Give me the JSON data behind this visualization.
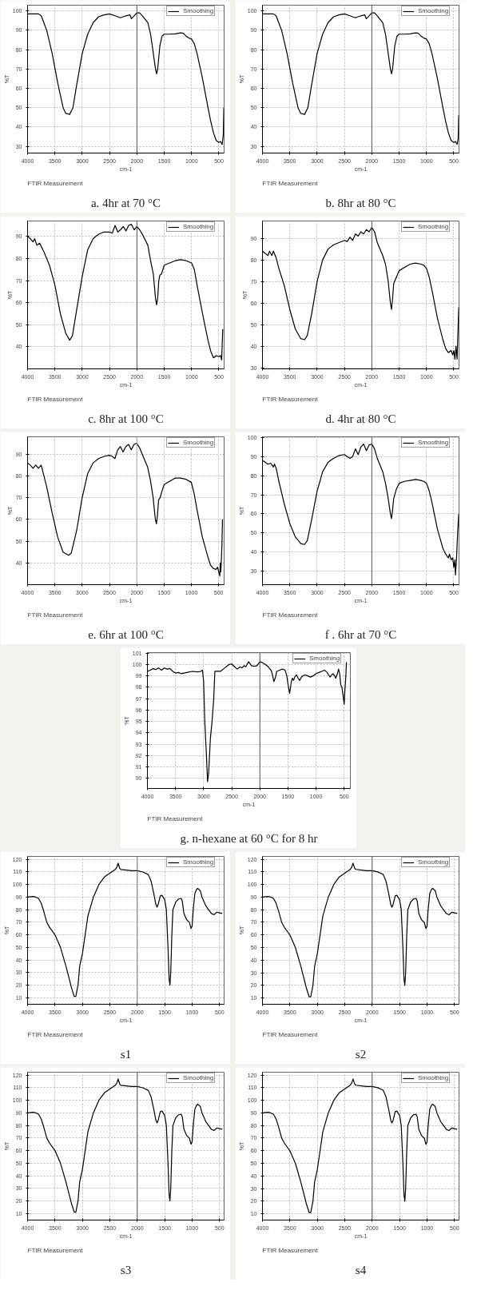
{
  "chart_data": [
    {
      "type": "line",
      "title": "a. 4hr at 70 °C",
      "xlabel": "cm-1",
      "ylabel": "%T",
      "annotations": [
        "FTIR Measurement"
      ],
      "grid": true,
      "legend": "top right",
      "x": [
        4000,
        3900,
        3800,
        3750,
        3650,
        3550,
        3450,
        3350,
        3300,
        3230,
        3170,
        3100,
        3000,
        2900,
        2800,
        2700,
        2600,
        2500,
        2400,
        2300,
        2200,
        2130,
        2100,
        2050,
        2000,
        1950,
        1900,
        1800,
        1750,
        1700,
        1660,
        1640,
        1620,
        1580,
        1540,
        1500,
        1400,
        1300,
        1200,
        1150,
        1100,
        1050,
        1000,
        950,
        900,
        800,
        700,
        650,
        600,
        550,
        500,
        470,
        440,
        420,
        410
      ],
      "series": [
        {
          "name": "Smoothing",
          "color": "#000000",
          "values": [
            98.5,
            98.5,
            98.5,
            97.5,
            90,
            78,
            63,
            50,
            47,
            46.5,
            50,
            62,
            78,
            88,
            94,
            97,
            98,
            98.5,
            97.5,
            96.5,
            97.5,
            98,
            96,
            97.5,
            99,
            99,
            97.5,
            94,
            88,
            78,
            70,
            67.5,
            70,
            82,
            87,
            88,
            88,
            88.2,
            88.7,
            88.5,
            87,
            86,
            85.5,
            83,
            78,
            65,
            50,
            43,
            37,
            33,
            32,
            32.5,
            31,
            36,
            50
          ]
        }
      ],
      "xlim": [
        4000,
        405
      ],
      "ylim": [
        26.5,
        103
      ],
      "xticks": [
        4000,
        3500,
        3000,
        2500,
        2000,
        1500,
        1000,
        500
      ],
      "yticks": [
        30,
        40,
        50,
        60,
        70,
        80,
        90,
        100
      ],
      "ref_lines": [
        {
          "axis": "x",
          "value": 2000,
          "color": "#555555"
        }
      ]
    },
    {
      "type": "line",
      "title": "b. 8hr at 80 °C",
      "xlabel": "cm-1",
      "ylabel": "%T",
      "annotations": [
        "FTIR Measurement"
      ],
      "grid": true,
      "legend": "top right",
      "x": [
        4000,
        3900,
        3800,
        3750,
        3650,
        3550,
        3450,
        3350,
        3300,
        3230,
        3170,
        3100,
        3000,
        2900,
        2800,
        2700,
        2600,
        2500,
        2400,
        2300,
        2200,
        2130,
        2100,
        2050,
        2000,
        1950,
        1900,
        1800,
        1750,
        1700,
        1660,
        1640,
        1620,
        1580,
        1540,
        1500,
        1400,
        1300,
        1200,
        1150,
        1100,
        1050,
        1000,
        950,
        900,
        800,
        700,
        650,
        600,
        550,
        500,
        470,
        440,
        420,
        410
      ],
      "series": [
        {
          "name": "Smoothing",
          "color": "#000000",
          "values": [
            98.5,
            98.5,
            98.5,
            97.5,
            90,
            78,
            63,
            50,
            47,
            46.5,
            50,
            62,
            78,
            88,
            94,
            97,
            98,
            98.5,
            97.5,
            96.5,
            97.5,
            98,
            96,
            97.5,
            99,
            99,
            97.5,
            94,
            88,
            78,
            70,
            67.5,
            70,
            82,
            87,
            88,
            88,
            88.2,
            88.7,
            88.5,
            87,
            86,
            85.5,
            83,
            78,
            65,
            50,
            43,
            37,
            33,
            32,
            32.5,
            31,
            34,
            46
          ]
        }
      ],
      "xlim": [
        4000,
        405
      ],
      "ylim": [
        26.5,
        103
      ],
      "xticks": [
        4000,
        3500,
        3000,
        2500,
        2000,
        1500,
        1000,
        500
      ],
      "yticks": [
        30,
        40,
        50,
        60,
        70,
        80,
        90,
        100
      ],
      "ref_lines": [
        {
          "axis": "x",
          "value": 2000,
          "color": "#555555"
        }
      ]
    },
    {
      "type": "line",
      "title": "c. 8hr at 100 °C",
      "xlabel": "cm-1",
      "ylabel": "%T",
      "annotations": [
        "FTIR Measurement"
      ],
      "grid": true,
      "legend": "top right",
      "x": [
        4000,
        3950,
        3900,
        3870,
        3830,
        3780,
        3700,
        3650,
        3600,
        3500,
        3400,
        3300,
        3230,
        3180,
        3100,
        3000,
        2900,
        2800,
        2700,
        2600,
        2500,
        2450,
        2400,
        2350,
        2300,
        2250,
        2200,
        2150,
        2100,
        2050,
        2000,
        1950,
        1900,
        1800,
        1750,
        1700,
        1660,
        1640,
        1620,
        1600,
        1580,
        1550,
        1500,
        1400,
        1300,
        1200,
        1100,
        1000,
        950,
        900,
        800,
        700,
        650,
        600,
        550,
        500,
        470,
        450,
        440,
        430
      ],
      "series": [
        {
          "name": "Smoothing",
          "color": "#000000",
          "values": [
            90,
            89,
            87.5,
            89,
            86,
            87,
            83,
            80,
            77,
            68,
            55,
            46,
            43,
            45,
            57,
            72,
            84,
            89,
            91,
            92,
            92,
            91.5,
            95,
            92,
            93,
            94.5,
            92.5,
            95,
            95.5,
            93,
            94.5,
            93,
            91,
            86,
            79,
            73,
            62,
            59,
            62,
            70,
            72.5,
            73,
            77,
            78,
            79,
            79.5,
            79,
            78,
            75,
            68,
            55,
            43,
            38,
            35,
            36,
            35.5,
            36,
            34,
            41,
            48
          ]
        }
      ],
      "xlim": [
        4000,
        405
      ],
      "ylim": [
        30,
        97
      ],
      "xticks": [
        4000,
        3500,
        3000,
        2500,
        2000,
        1500,
        1000,
        500
      ],
      "yticks": [
        40,
        50,
        60,
        70,
        80,
        90
      ],
      "ref_lines": [
        {
          "axis": "x",
          "value": 2000,
          "color": "#555555"
        }
      ]
    },
    {
      "type": "line",
      "title": "d. 4hr at 80 °C",
      "xlabel": "cm-1",
      "ylabel": "%T",
      "annotations": [
        "FTIR Measurement"
      ],
      "grid": true,
      "legend": "top right",
      "x": [
        4000,
        3950,
        3900,
        3870,
        3830,
        3800,
        3750,
        3700,
        3600,
        3500,
        3400,
        3300,
        3230,
        3180,
        3100,
        3000,
        2900,
        2800,
        2700,
        2600,
        2500,
        2450,
        2400,
        2350,
        2300,
        2250,
        2200,
        2150,
        2100,
        2050,
        2000,
        1950,
        1900,
        1800,
        1750,
        1700,
        1660,
        1640,
        1620,
        1600,
        1550,
        1500,
        1400,
        1300,
        1200,
        1100,
        1050,
        1000,
        950,
        900,
        800,
        700,
        650,
        600,
        550,
        520,
        500,
        480,
        460,
        440,
        420,
        410
      ],
      "series": [
        {
          "name": "Smoothing",
          "color": "#000000",
          "values": [
            84,
            83,
            82,
            84,
            82,
            84,
            81,
            76,
            68,
            57,
            48,
            43.5,
            43,
            45,
            55,
            70,
            80,
            85,
            87,
            88,
            89,
            88.5,
            90.5,
            89,
            92,
            91,
            93,
            92,
            94,
            93,
            95,
            93,
            88,
            82,
            78,
            70,
            60,
            57,
            62,
            69,
            72,
            75,
            76.5,
            78,
            78.5,
            78,
            77.5,
            76,
            72,
            66,
            53,
            43,
            39,
            37,
            38,
            36,
            38,
            34,
            40,
            34,
            50,
            58
          ]
        }
      ],
      "xlim": [
        4000,
        405
      ],
      "ylim": [
        29.5,
        98
      ],
      "xticks": [
        4000,
        3500,
        3000,
        2500,
        2000,
        1500,
        1000,
        500
      ],
      "yticks": [
        30,
        40,
        50,
        60,
        70,
        80,
        90
      ],
      "ref_lines": [
        {
          "axis": "x",
          "value": 2000,
          "color": "#555555"
        }
      ]
    },
    {
      "type": "line",
      "title": "e. 6hr at 100 °C",
      "xlabel": "cm-1",
      "ylabel": "%T",
      "annotations": [
        "FTIR Measurement"
      ],
      "grid": true,
      "legend": "top right",
      "x": [
        4000,
        3950,
        3900,
        3850,
        3800,
        3750,
        3720,
        3650,
        3550,
        3450,
        3350,
        3250,
        3200,
        3100,
        3000,
        2900,
        2800,
        2700,
        2600,
        2500,
        2450,
        2400,
        2350,
        2300,
        2250,
        2200,
        2150,
        2100,
        2050,
        2000,
        1950,
        1900,
        1800,
        1750,
        1700,
        1660,
        1640,
        1620,
        1600,
        1570,
        1550,
        1500,
        1400,
        1300,
        1200,
        1100,
        1000,
        950,
        900,
        800,
        700,
        650,
        600,
        550,
        520,
        500,
        480,
        470,
        460,
        440,
        430
      ],
      "series": [
        {
          "name": "Smoothing",
          "color": "#000000",
          "values": [
            86,
            85,
            83.5,
            85,
            83.5,
            85,
            82,
            75,
            63,
            52,
            45,
            43.5,
            44.5,
            55,
            70,
            81,
            86,
            88,
            89,
            89.5,
            89,
            88,
            92,
            93.5,
            91,
            93.5,
            94.5,
            92,
            94.5,
            95,
            93,
            90,
            84,
            78,
            70,
            60,
            58,
            62,
            69,
            70,
            72,
            76,
            77.5,
            79,
            79,
            78.5,
            77,
            72,
            65,
            52,
            43,
            39,
            37.5,
            37,
            38,
            36,
            34,
            40,
            36,
            48,
            60
          ]
        }
      ],
      "xlim": [
        4000,
        400
      ],
      "ylim": [
        30,
        98
      ],
      "xticks": [
        4000,
        3500,
        3000,
        2500,
        2000,
        1500,
        1000,
        500
      ],
      "yticks": [
        40,
        50,
        60,
        70,
        80,
        90
      ],
      "ref_lines": [
        {
          "axis": "x",
          "value": 2000,
          "color": "#aaaaaa"
        }
      ]
    },
    {
      "type": "line",
      "title": "f . 6hr at 70 °C",
      "xlabel": "cm-1",
      "ylabel": "%T",
      "annotations": [
        "FTIR Measurement"
      ],
      "grid": true,
      "legend": "top right",
      "x": [
        4000,
        3950,
        3900,
        3850,
        3800,
        3780,
        3750,
        3700,
        3600,
        3500,
        3400,
        3300,
        3230,
        3180,
        3100,
        3000,
        2900,
        2800,
        2700,
        2600,
        2500,
        2450,
        2400,
        2350,
        2300,
        2250,
        2200,
        2150,
        2100,
        2050,
        2000,
        1950,
        1900,
        1800,
        1750,
        1700,
        1660,
        1640,
        1620,
        1600,
        1550,
        1500,
        1400,
        1300,
        1200,
        1100,
        1050,
        1000,
        950,
        900,
        800,
        700,
        650,
        600,
        580,
        550,
        520,
        500,
        480,
        470,
        450,
        430,
        410
      ],
      "series": [
        {
          "name": "Smoothing",
          "color": "#000000",
          "values": [
            88,
            87,
            86,
            86.5,
            84.5,
            86,
            84,
            77,
            65,
            55,
            48,
            44.5,
            44,
            46,
            57,
            72,
            82,
            87,
            89,
            90.5,
            91,
            90,
            89,
            90,
            94,
            91,
            95,
            96.5,
            93,
            96,
            96.5,
            94,
            89,
            82,
            76,
            68,
            60,
            57.5,
            62,
            68,
            73,
            76,
            77,
            77.5,
            78,
            77.5,
            77,
            76,
            72,
            66,
            52,
            42,
            39,
            37,
            39,
            36,
            37,
            32,
            36,
            28,
            37,
            50,
            60
          ]
        }
      ],
      "xlim": [
        4000,
        405
      ],
      "ylim": [
        23,
        100.3
      ],
      "xticks": [
        4000,
        3500,
        3000,
        2500,
        2000,
        1500,
        1000,
        500
      ],
      "yticks": [
        30,
        40,
        50,
        60,
        70,
        80,
        90,
        100
      ],
      "ref_lines": [
        {
          "axis": "x",
          "value": 2000,
          "color": "#555555"
        }
      ]
    },
    {
      "type": "line",
      "title": "g. n-hexane at 60 °C for 8 hr",
      "xlabel": "cm-1",
      "ylabel": "%T",
      "annotations": [
        "FTIR Measurement"
      ],
      "grid": true,
      "legend": "top right",
      "x": [
        4000,
        3950,
        3900,
        3850,
        3800,
        3750,
        3700,
        3650,
        3600,
        3550,
        3500,
        3450,
        3400,
        3300,
        3200,
        3100,
        3050,
        3020,
        3000,
        2980,
        2950,
        2930,
        2910,
        2880,
        2850,
        2820,
        2800,
        2750,
        2700,
        2650,
        2600,
        2550,
        2500,
        2450,
        2400,
        2350,
        2320,
        2280,
        2250,
        2200,
        2150,
        2100,
        2050,
        2000,
        1950,
        1900,
        1850,
        1800,
        1780,
        1750,
        1720,
        1700,
        1650,
        1600,
        1550,
        1520,
        1500,
        1470,
        1440,
        1420,
        1400,
        1380,
        1350,
        1320,
        1290,
        1260,
        1200,
        1150,
        1100,
        1050,
        1000,
        950,
        900,
        850,
        800,
        780,
        750,
        720,
        700,
        670,
        650,
        620,
        600,
        580,
        560,
        540,
        520,
        500,
        490,
        470,
        460
      ],
      "series": [
        {
          "name": "Smoothing",
          "color": "#000000",
          "values": [
            99.4,
            99.5,
            99.65,
            99.55,
            99.7,
            99.5,
            99.7,
            99.6,
            99.65,
            99.4,
            99.25,
            99.3,
            99.2,
            99.3,
            99.4,
            99.35,
            99.4,
            99.5,
            98.5,
            95,
            92,
            89.7,
            90.5,
            93.5,
            95,
            97,
            99.4,
            99.4,
            99.4,
            99.6,
            99.8,
            100,
            100.05,
            99.8,
            99.6,
            99.8,
            99.7,
            99.9,
            99.8,
            100.25,
            99.9,
            99.85,
            99.9,
            100.25,
            100.15,
            100,
            99.8,
            99.5,
            99.2,
            98.5,
            98.9,
            99.4,
            99.5,
            99.6,
            99.5,
            99,
            98.3,
            97.45,
            98.5,
            98.8,
            98.6,
            98.9,
            99.1,
            98.8,
            98.6,
            98.9,
            99.1,
            99,
            98.9,
            99,
            99.2,
            99.3,
            99.4,
            99.5,
            99.3,
            99.1,
            98.9,
            99.1,
            99.2,
            99,
            98.8,
            99.2,
            99.6,
            99.2,
            98.2,
            98,
            97.3,
            96.5,
            97.5,
            99,
            100.2
          ]
        }
      ],
      "xlim": [
        4000,
        390
      ],
      "ylim": [
        89.1,
        101.05
      ],
      "xticks": [
        4000,
        3500,
        3000,
        2500,
        2000,
        1500,
        1000,
        500
      ],
      "yticks": [
        90,
        91,
        92,
        93,
        94,
        95,
        96,
        97,
        98,
        99,
        100,
        101
      ],
      "ref_lines": [
        {
          "axis": "x",
          "value": 2000,
          "color": "#555555"
        }
      ]
    },
    {
      "type": "line",
      "title": "s1",
      "xlabel": "cm-1",
      "ylabel": "%T",
      "annotations": [
        "FTIR Measurement"
      ],
      "grid": true,
      "legend": "top right",
      "x": [
        4000,
        3900,
        3850,
        3800,
        3750,
        3700,
        3650,
        3600,
        3500,
        3400,
        3300,
        3200,
        3150,
        3120,
        3080,
        3050,
        3000,
        2950,
        2900,
        2800,
        2700,
        2600,
        2500,
        2400,
        2370,
        2350,
        2320,
        2300,
        2200,
        2100,
        2000,
        1900,
        1800,
        1750,
        1700,
        1660,
        1640,
        1620,
        1580,
        1550,
        1500,
        1470,
        1440,
        1420,
        1405,
        1390,
        1370,
        1350,
        1300,
        1250,
        1200,
        1180,
        1150,
        1100,
        1050,
        1020,
        1000,
        980,
        950,
        920,
        900,
        850,
        820,
        780,
        750,
        700,
        650,
        600,
        550,
        500,
        450
      ],
      "series": [
        {
          "name": "Smoothing",
          "color": "#000000",
          "values": [
            90,
            90.5,
            90,
            89,
            85,
            78,
            70,
            66,
            60,
            50,
            35,
            18,
            11,
            11,
            20,
            35,
            45,
            60,
            75,
            90,
            100,
            106,
            109,
            112,
            114,
            117,
            113,
            112,
            111.5,
            111,
            111,
            110,
            108,
            103,
            93,
            84,
            82,
            84,
            91,
            91.5,
            88,
            80,
            50,
            25,
            20,
            30,
            60,
            80,
            86,
            88.5,
            89,
            87,
            77,
            72,
            70,
            65,
            67,
            80,
            93,
            96,
            97,
            95,
            90,
            86,
            83,
            80,
            77,
            76,
            78,
            77.5,
            77
          ]
        }
      ],
      "xlim": [
        4000,
        417
      ],
      "ylim": [
        4.7,
        122.4
      ],
      "xticks": [
        4000,
        3500,
        3000,
        2500,
        2000,
        1500,
        1000,
        500
      ],
      "yticks": [
        10,
        20,
        30,
        40,
        50,
        60,
        70,
        80,
        90,
        100,
        110,
        120
      ],
      "ref_lines": [
        {
          "axis": "x",
          "value": 2000,
          "color": "#777777"
        }
      ]
    },
    {
      "type": "line",
      "title": "s2",
      "xlabel": "cm-1",
      "ylabel": "%T",
      "annotations": [
        "FTIR Measurement"
      ],
      "grid": true,
      "legend": "top right",
      "x": [
        4000,
        3900,
        3850,
        3800,
        3750,
        3700,
        3650,
        3600,
        3500,
        3400,
        3300,
        3200,
        3150,
        3120,
        3080,
        3050,
        3000,
        2950,
        2900,
        2800,
        2700,
        2600,
        2500,
        2400,
        2370,
        2350,
        2320,
        2300,
        2200,
        2100,
        2000,
        1900,
        1800,
        1750,
        1700,
        1660,
        1640,
        1620,
        1580,
        1550,
        1500,
        1470,
        1440,
        1420,
        1405,
        1390,
        1370,
        1350,
        1300,
        1250,
        1200,
        1180,
        1150,
        1100,
        1050,
        1020,
        1000,
        980,
        950,
        920,
        900,
        850,
        820,
        780,
        750,
        700,
        650,
        600,
        550,
        500,
        450
      ],
      "series": [
        {
          "name": "Smoothing",
          "color": "#000000",
          "values": [
            90,
            90.5,
            90,
            89,
            85,
            78,
            70,
            66,
            60,
            50,
            35,
            18,
            11,
            11,
            20,
            35,
            45,
            60,
            75,
            90,
            100,
            106,
            109,
            112,
            114,
            117,
            113,
            112,
            111.5,
            111,
            111,
            110,
            108,
            103,
            93,
            84,
            82,
            84,
            91,
            91.5,
            88,
            80,
            50,
            25,
            20,
            30,
            60,
            80,
            86,
            88.5,
            89,
            87,
            77,
            72,
            70,
            65,
            67,
            80,
            93,
            96,
            97,
            95,
            90,
            86,
            83,
            80,
            77,
            76,
            78,
            77.5,
            77
          ]
        }
      ],
      "xlim": [
        4000,
        417
      ],
      "ylim": [
        5,
        122.3
      ],
      "xticks": [
        4000,
        3500,
        3000,
        2500,
        2000,
        1500,
        1000,
        500
      ],
      "yticks": [
        10,
        20,
        30,
        40,
        50,
        60,
        70,
        80,
        90,
        100,
        110,
        120
      ],
      "ref_lines": [
        {
          "axis": "x",
          "value": 2000,
          "color": "#555555"
        }
      ]
    },
    {
      "type": "line",
      "title": "s3",
      "xlabel": "cm-1",
      "ylabel": "%T",
      "annotations": [
        "FTIR Measurement"
      ],
      "grid": true,
      "legend": "top right",
      "x": [
        4000,
        3900,
        3850,
        3800,
        3750,
        3700,
        3650,
        3600,
        3500,
        3400,
        3300,
        3200,
        3150,
        3120,
        3080,
        3050,
        3000,
        2950,
        2900,
        2800,
        2700,
        2600,
        2500,
        2400,
        2370,
        2350,
        2320,
        2300,
        2200,
        2100,
        2000,
        1900,
        1800,
        1750,
        1700,
        1660,
        1640,
        1620,
        1580,
        1550,
        1500,
        1470,
        1440,
        1420,
        1405,
        1390,
        1370,
        1350,
        1300,
        1250,
        1200,
        1180,
        1150,
        1100,
        1050,
        1020,
        1000,
        980,
        950,
        920,
        900,
        850,
        820,
        780,
        750,
        700,
        650,
        600,
        550,
        500,
        450
      ],
      "series": [
        {
          "name": "Smoothing",
          "color": "#000000",
          "values": [
            90,
            90.5,
            90,
            89,
            85,
            78,
            70,
            66,
            60,
            50,
            35,
            18,
            11,
            11,
            20,
            35,
            45,
            60,
            75,
            90,
            100,
            106,
            109,
            112,
            114,
            117,
            113,
            112,
            111.5,
            111,
            111,
            110,
            108,
            103,
            93,
            84,
            82,
            84,
            91,
            91.5,
            88,
            80,
            50,
            25,
            20,
            30,
            60,
            80,
            86,
            88.5,
            89,
            87,
            77,
            72,
            70,
            65,
            67,
            80,
            93,
            96,
            97,
            95,
            90,
            86,
            83,
            80,
            77,
            76,
            78,
            77.5,
            77
          ]
        }
      ],
      "xlim": [
        4000,
        417
      ],
      "ylim": [
        4.7,
        122.4
      ],
      "xticks": [
        4000,
        3500,
        3000,
        2500,
        2000,
        1500,
        1000,
        500
      ],
      "yticks": [
        10,
        20,
        30,
        40,
        50,
        60,
        70,
        80,
        90,
        100,
        110,
        120
      ],
      "ref_lines": [
        {
          "axis": "x",
          "value": 2000,
          "color": "#555555"
        }
      ]
    },
    {
      "type": "line",
      "title": "s4",
      "xlabel": "cm-1",
      "ylabel": "%T",
      "annotations": [
        "FTIR Measurement"
      ],
      "grid": true,
      "legend": "top right",
      "x": [
        4000,
        3900,
        3850,
        3800,
        3750,
        3700,
        3650,
        3600,
        3500,
        3400,
        3300,
        3200,
        3150,
        3120,
        3080,
        3050,
        3000,
        2950,
        2900,
        2800,
        2700,
        2600,
        2500,
        2400,
        2370,
        2350,
        2320,
        2300,
        2200,
        2100,
        2000,
        1900,
        1800,
        1750,
        1700,
        1660,
        1640,
        1620,
        1580,
        1550,
        1500,
        1470,
        1440,
        1420,
        1405,
        1390,
        1370,
        1350,
        1300,
        1250,
        1200,
        1180,
        1150,
        1100,
        1050,
        1020,
        1000,
        980,
        950,
        920,
        900,
        850,
        820,
        780,
        750,
        700,
        650,
        600,
        550,
        500,
        450
      ],
      "series": [
        {
          "name": "Smoothing",
          "color": "#000000",
          "values": [
            90,
            90.5,
            90,
            89,
            85,
            78,
            70,
            66,
            60,
            50,
            35,
            18,
            11,
            11,
            20,
            35,
            45,
            60,
            75,
            90,
            100,
            106,
            109,
            112,
            114,
            117,
            113,
            112,
            111.5,
            111,
            111,
            110,
            108,
            103,
            93,
            84,
            82,
            84,
            91,
            91.5,
            88,
            80,
            50,
            25,
            20,
            30,
            60,
            80,
            86,
            88.5,
            89,
            87,
            77,
            72,
            70,
            65,
            67,
            80,
            93,
            96,
            97,
            95,
            90,
            86,
            83,
            80,
            77,
            76,
            78,
            77.5,
            77
          ]
        }
      ],
      "xlim": [
        4000,
        417
      ],
      "ylim": [
        5,
        122.3
      ],
      "xticks": [
        4000,
        3500,
        3000,
        2500,
        2000,
        1500,
        1000,
        500
      ],
      "yticks": [
        10,
        20,
        30,
        40,
        50,
        60,
        70,
        80,
        90,
        100,
        110,
        120
      ],
      "ref_lines": [
        {
          "axis": "x",
          "value": 2000,
          "color": "#555555"
        }
      ]
    }
  ]
}
